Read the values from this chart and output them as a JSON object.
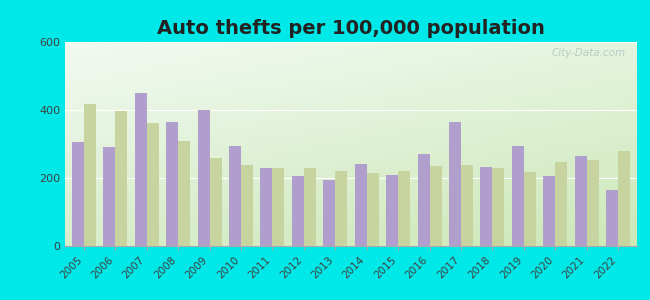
{
  "title": "Auto thefts per 100,000 population",
  "years": [
    2005,
    2006,
    2007,
    2008,
    2009,
    2010,
    2011,
    2012,
    2013,
    2014,
    2015,
    2016,
    2017,
    2018,
    2019,
    2020,
    2021,
    2022
  ],
  "middletown": [
    305,
    290,
    450,
    365,
    400,
    295,
    228,
    205,
    195,
    240,
    210,
    270,
    365,
    233,
    295,
    205,
    265,
    165
  ],
  "us_average": [
    418,
    398,
    363,
    308,
    258,
    239,
    229,
    230,
    220,
    216,
    220,
    236,
    237,
    228,
    219,
    246,
    254,
    280
  ],
  "middletown_color": "#b09fcc",
  "us_color": "#c8d4a0",
  "bg_outer": "#00e8e8",
  "ylim": [
    0,
    600
  ],
  "yticks": [
    0,
    200,
    400,
    600
  ],
  "bar_width": 0.38,
  "title_fontsize": 14
}
